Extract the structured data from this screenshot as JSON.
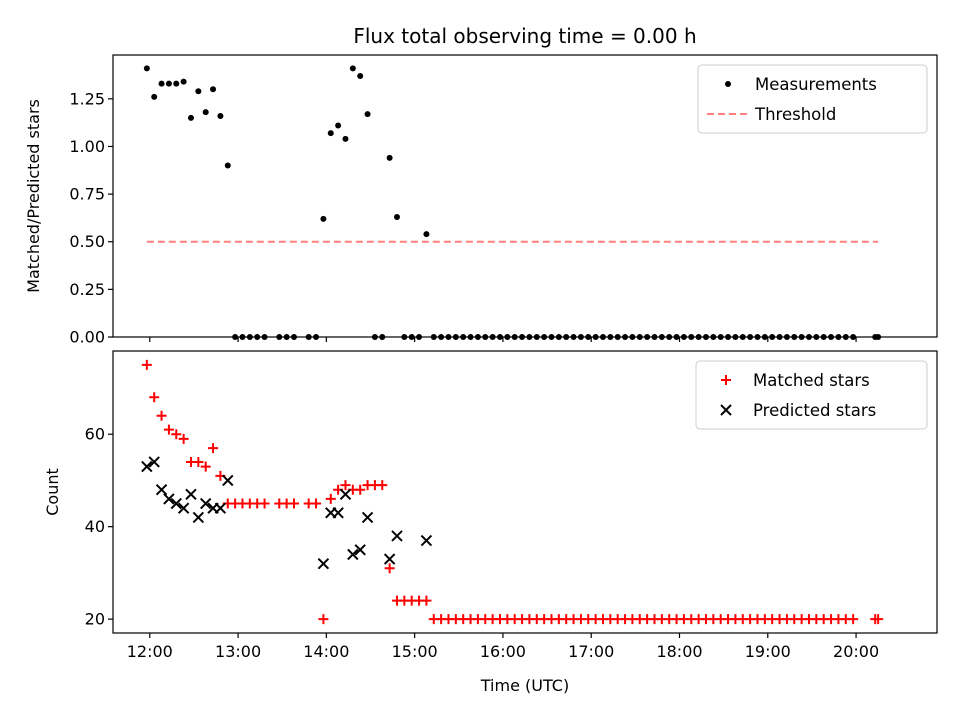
{
  "title": "Flux total observing time = 0.00 h",
  "chart_data": [
    {
      "type": "scatter",
      "ylabel": "Matched/Predicted stars",
      "xlabel": "",
      "xlim": [
        "11:35",
        "20:55"
      ],
      "ylim": [
        0,
        1.48
      ],
      "grid": false,
      "legend_position": "top-right",
      "yticks": [
        "0.00",
        "0.25",
        "0.50",
        "0.75",
        "1.00",
        "1.25"
      ],
      "series": [
        {
          "name": "Measurements",
          "marker": "dot",
          "color": "#000000",
          "points": [
            [
              "11:58",
              1.41
            ],
            [
              "12:03",
              1.26
            ],
            [
              "12:08",
              1.33
            ],
            [
              "12:13",
              1.33
            ],
            [
              "12:18",
              1.33
            ],
            [
              "12:23",
              1.34
            ],
            [
              "12:28",
              1.15
            ],
            [
              "12:33",
              1.29
            ],
            [
              "12:38",
              1.18
            ],
            [
              "12:43",
              1.3
            ],
            [
              "12:48",
              1.16
            ],
            [
              "12:53",
              0.9
            ],
            [
              "12:58",
              0
            ],
            [
              "13:03",
              0
            ],
            [
              "13:08",
              0
            ],
            [
              "13:13",
              0
            ],
            [
              "13:18",
              0
            ],
            [
              "13:28",
              0
            ],
            [
              "13:33",
              0
            ],
            [
              "13:38",
              0
            ],
            [
              "13:48",
              0
            ],
            [
              "13:53",
              0
            ],
            [
              "13:58",
              0.62
            ],
            [
              "14:03",
              1.07
            ],
            [
              "14:08",
              1.11
            ],
            [
              "14:13",
              1.04
            ],
            [
              "14:18",
              1.41
            ],
            [
              "14:23",
              1.37
            ],
            [
              "14:28",
              1.17
            ],
            [
              "14:33",
              0
            ],
            [
              "14:38",
              0
            ],
            [
              "14:43",
              0.94
            ],
            [
              "14:48",
              0.63
            ],
            [
              "14:53",
              0
            ],
            [
              "14:58",
              0
            ],
            [
              "15:03",
              0
            ],
            [
              "15:08",
              0.54
            ],
            [
              "15:13",
              0
            ],
            [
              "15:18",
              0
            ],
            [
              "15:23",
              0
            ],
            [
              "15:28",
              0
            ],
            [
              "15:33",
              0
            ],
            [
              "15:38",
              0
            ],
            [
              "15:43",
              0
            ],
            [
              "15:48",
              0
            ],
            [
              "15:53",
              0
            ],
            [
              "15:58",
              0
            ],
            [
              "16:03",
              0
            ],
            [
              "16:08",
              0
            ],
            [
              "16:13",
              0
            ],
            [
              "16:18",
              0
            ],
            [
              "16:23",
              0
            ],
            [
              "16:28",
              0
            ],
            [
              "16:33",
              0
            ],
            [
              "16:38",
              0
            ],
            [
              "16:43",
              0
            ],
            [
              "16:48",
              0
            ],
            [
              "16:53",
              0
            ],
            [
              "16:58",
              0
            ],
            [
              "17:03",
              0
            ],
            [
              "17:08",
              0
            ],
            [
              "17:13",
              0
            ],
            [
              "17:18",
              0
            ],
            [
              "17:23",
              0
            ],
            [
              "17:28",
              0
            ],
            [
              "17:33",
              0
            ],
            [
              "17:38",
              0
            ],
            [
              "17:43",
              0
            ],
            [
              "17:48",
              0
            ],
            [
              "17:53",
              0
            ],
            [
              "17:58",
              0
            ],
            [
              "18:03",
              0
            ],
            [
              "18:08",
              0
            ],
            [
              "18:13",
              0
            ],
            [
              "18:18",
              0
            ],
            [
              "18:23",
              0
            ],
            [
              "18:28",
              0
            ],
            [
              "18:33",
              0
            ],
            [
              "18:38",
              0
            ],
            [
              "18:43",
              0
            ],
            [
              "18:48",
              0
            ],
            [
              "18:53",
              0
            ],
            [
              "18:58",
              0
            ],
            [
              "19:03",
              0
            ],
            [
              "19:08",
              0
            ],
            [
              "19:13",
              0
            ],
            [
              "19:18",
              0
            ],
            [
              "19:23",
              0
            ],
            [
              "19:28",
              0
            ],
            [
              "19:33",
              0
            ],
            [
              "19:38",
              0
            ],
            [
              "19:43",
              0
            ],
            [
              "19:48",
              0
            ],
            [
              "19:53",
              0
            ],
            [
              "19:58",
              0
            ],
            [
              "20:13",
              0
            ],
            [
              "20:15",
              0
            ]
          ]
        },
        {
          "name": "Threshold",
          "marker": "dashed-line",
          "color": "#ff7f7f",
          "points": [
            [
              "11:58",
              0.5
            ],
            [
              "20:15",
              0.5
            ]
          ]
        }
      ]
    },
    {
      "type": "scatter",
      "ylabel": "Count",
      "xlabel": "Time (UTC)",
      "xlim": [
        "11:35",
        "20:55"
      ],
      "ylim": [
        17,
        78
      ],
      "grid": false,
      "legend_position": "top-right",
      "yticks": [
        "20",
        "40",
        "60"
      ],
      "xticks": [
        "12:00",
        "13:00",
        "14:00",
        "15:00",
        "16:00",
        "17:00",
        "18:00",
        "19:00",
        "20:00"
      ],
      "series": [
        {
          "name": "Matched stars",
          "marker": "plus",
          "color": "#ff0000",
          "points": [
            [
              "11:58",
              75
            ],
            [
              "12:03",
              68
            ],
            [
              "12:08",
              64
            ],
            [
              "12:13",
              61
            ],
            [
              "12:18",
              60
            ],
            [
              "12:23",
              59
            ],
            [
              "12:28",
              54
            ],
            [
              "12:33",
              54
            ],
            [
              "12:38",
              53
            ],
            [
              "12:43",
              57
            ],
            [
              "12:48",
              51
            ],
            [
              "12:53",
              45
            ],
            [
              "12:58",
              45
            ],
            [
              "13:03",
              45
            ],
            [
              "13:08",
              45
            ],
            [
              "13:13",
              45
            ],
            [
              "13:18",
              45
            ],
            [
              "13:28",
              45
            ],
            [
              "13:33",
              45
            ],
            [
              "13:38",
              45
            ],
            [
              "13:48",
              45
            ],
            [
              "13:53",
              45
            ],
            [
              "13:58",
              20
            ],
            [
              "14:03",
              46
            ],
            [
              "14:08",
              48
            ],
            [
              "14:13",
              49
            ],
            [
              "14:18",
              48
            ],
            [
              "14:23",
              48
            ],
            [
              "14:28",
              49
            ],
            [
              "14:33",
              49
            ],
            [
              "14:38",
              49
            ],
            [
              "14:43",
              31
            ],
            [
              "14:48",
              24
            ],
            [
              "14:53",
              24
            ],
            [
              "14:58",
              24
            ],
            [
              "15:03",
              24
            ],
            [
              "15:08",
              24
            ],
            [
              "15:13",
              20
            ],
            [
              "15:18",
              20
            ],
            [
              "15:23",
              20
            ],
            [
              "15:28",
              20
            ],
            [
              "15:33",
              20
            ],
            [
              "15:38",
              20
            ],
            [
              "15:43",
              20
            ],
            [
              "15:48",
              20
            ],
            [
              "15:53",
              20
            ],
            [
              "15:58",
              20
            ],
            [
              "16:03",
              20
            ],
            [
              "16:08",
              20
            ],
            [
              "16:13",
              20
            ],
            [
              "16:18",
              20
            ],
            [
              "16:23",
              20
            ],
            [
              "16:28",
              20
            ],
            [
              "16:33",
              20
            ],
            [
              "16:38",
              20
            ],
            [
              "16:43",
              20
            ],
            [
              "16:48",
              20
            ],
            [
              "16:53",
              20
            ],
            [
              "16:58",
              20
            ],
            [
              "17:03",
              20
            ],
            [
              "17:08",
              20
            ],
            [
              "17:13",
              20
            ],
            [
              "17:18",
              20
            ],
            [
              "17:23",
              20
            ],
            [
              "17:28",
              20
            ],
            [
              "17:33",
              20
            ],
            [
              "17:38",
              20
            ],
            [
              "17:43",
              20
            ],
            [
              "17:48",
              20
            ],
            [
              "17:53",
              20
            ],
            [
              "17:58",
              20
            ],
            [
              "18:03",
              20
            ],
            [
              "18:08",
              20
            ],
            [
              "18:13",
              20
            ],
            [
              "18:18",
              20
            ],
            [
              "18:23",
              20
            ],
            [
              "18:28",
              20
            ],
            [
              "18:33",
              20
            ],
            [
              "18:38",
              20
            ],
            [
              "18:43",
              20
            ],
            [
              "18:48",
              20
            ],
            [
              "18:53",
              20
            ],
            [
              "18:58",
              20
            ],
            [
              "19:03",
              20
            ],
            [
              "19:08",
              20
            ],
            [
              "19:13",
              20
            ],
            [
              "19:18",
              20
            ],
            [
              "19:23",
              20
            ],
            [
              "19:28",
              20
            ],
            [
              "19:33",
              20
            ],
            [
              "19:38",
              20
            ],
            [
              "19:43",
              20
            ],
            [
              "19:48",
              20
            ],
            [
              "19:53",
              20
            ],
            [
              "19:58",
              20
            ],
            [
              "20:13",
              20
            ],
            [
              "20:15",
              20
            ]
          ]
        },
        {
          "name": "Predicted stars",
          "marker": "x",
          "color": "#000000",
          "points": [
            [
              "11:58",
              53
            ],
            [
              "12:03",
              54
            ],
            [
              "12:08",
              48
            ],
            [
              "12:13",
              46
            ],
            [
              "12:18",
              45
            ],
            [
              "12:23",
              44
            ],
            [
              "12:28",
              47
            ],
            [
              "12:33",
              42
            ],
            [
              "12:38",
              45
            ],
            [
              "12:43",
              44
            ],
            [
              "12:48",
              44
            ],
            [
              "12:53",
              50
            ],
            [
              "13:58",
              32
            ],
            [
              "14:03",
              43
            ],
            [
              "14:08",
              43
            ],
            [
              "14:13",
              47
            ],
            [
              "14:18",
              34
            ],
            [
              "14:23",
              35
            ],
            [
              "14:28",
              42
            ],
            [
              "14:43",
              33
            ],
            [
              "14:48",
              38
            ],
            [
              "15:08",
              37
            ]
          ]
        }
      ]
    }
  ]
}
